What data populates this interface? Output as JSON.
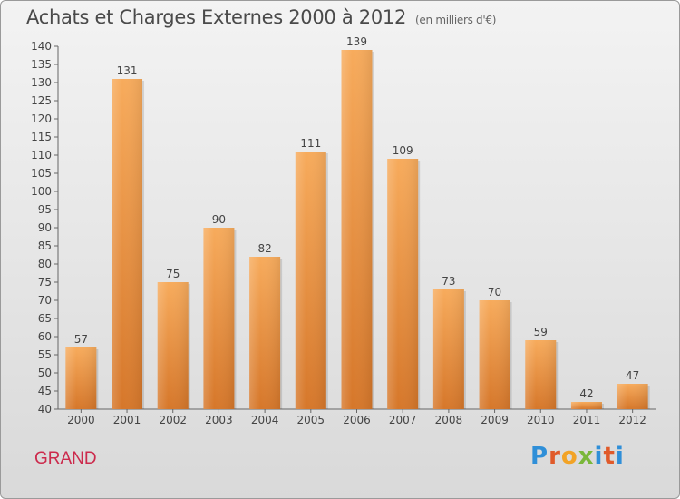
{
  "header": {
    "title": "Achats et Charges Externes 2000 à 2012",
    "unit": "(en milliers d'€)"
  },
  "footer": {
    "commune": "GRAND",
    "logo": "Proxiti"
  },
  "colors": {
    "bar_light": "#f6a858",
    "bar_dark": "#d97a28",
    "commune_text": "#cc2a4c"
  },
  "chart_data": {
    "type": "bar",
    "title": "Achats et Charges Externes 2000 à 2012",
    "subtitle": "(en milliers d'€)",
    "xlabel": "",
    "ylabel": "",
    "categories": [
      "2000",
      "2001",
      "2002",
      "2003",
      "2004",
      "2005",
      "2006",
      "2007",
      "2008",
      "2009",
      "2010",
      "2011",
      "2012"
    ],
    "values": [
      57,
      131,
      75,
      90,
      82,
      111,
      139,
      109,
      73,
      70,
      59,
      42,
      47
    ],
    "ylim": [
      40,
      140
    ],
    "yticks": [
      40,
      45,
      50,
      55,
      60,
      65,
      70,
      75,
      80,
      85,
      90,
      95,
      100,
      105,
      110,
      115,
      120,
      125,
      130,
      135,
      140
    ],
    "grid": false,
    "data_labels": true
  }
}
